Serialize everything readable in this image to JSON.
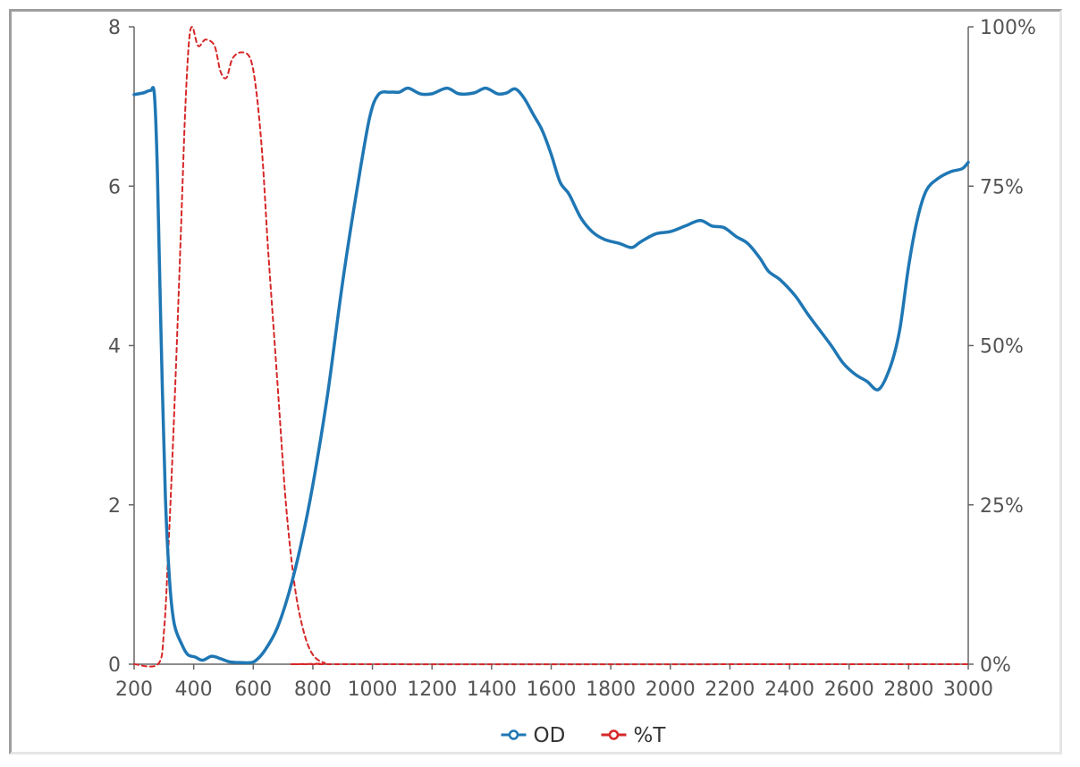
{
  "chart_data": {
    "type": "line",
    "title": "",
    "xlabel": "",
    "ylabel": "",
    "xlim": [
      200,
      3000
    ],
    "ylim": [
      0,
      8
    ],
    "y2lim": [
      0,
      100
    ],
    "x_ticks": [
      "200",
      "400",
      "600",
      "800",
      "1000",
      "1200",
      "1400",
      "1600",
      "1800",
      "2000",
      "2200",
      "2400",
      "2600",
      "2800",
      "3000"
    ],
    "y_ticks": [
      "0",
      "2",
      "4",
      "6",
      "8"
    ],
    "y2_ticks": [
      "0%",
      "25%",
      "50%",
      "75%",
      "100%"
    ],
    "grid": false,
    "legend_position": "bottom",
    "series": [
      {
        "name": "OD",
        "axis": "left",
        "color": "#1f77b4",
        "style": "solid",
        "points": [
          [
            200,
            7.15
          ],
          [
            230,
            7.17
          ],
          [
            255,
            7.2
          ],
          [
            268,
            7.15
          ],
          [
            278,
            6.2
          ],
          [
            290,
            4.2
          ],
          [
            305,
            2.1
          ],
          [
            320,
            1.0
          ],
          [
            335,
            0.5
          ],
          [
            360,
            0.25
          ],
          [
            380,
            0.12
          ],
          [
            405,
            0.09
          ],
          [
            430,
            0.05
          ],
          [
            460,
            0.1
          ],
          [
            490,
            0.07
          ],
          [
            520,
            0.03
          ],
          [
            560,
            0.02
          ],
          [
            590,
            0.02
          ],
          [
            610,
            0.05
          ],
          [
            640,
            0.18
          ],
          [
            680,
            0.45
          ],
          [
            720,
            0.9
          ],
          [
            760,
            1.5
          ],
          [
            800,
            2.25
          ],
          [
            850,
            3.4
          ],
          [
            900,
            4.8
          ],
          [
            950,
            6.0
          ],
          [
            990,
            6.85
          ],
          [
            1020,
            7.15
          ],
          [
            1060,
            7.18
          ],
          [
            1090,
            7.18
          ],
          [
            1120,
            7.23
          ],
          [
            1160,
            7.16
          ],
          [
            1200,
            7.16
          ],
          [
            1250,
            7.23
          ],
          [
            1290,
            7.16
          ],
          [
            1340,
            7.17
          ],
          [
            1380,
            7.23
          ],
          [
            1420,
            7.16
          ],
          [
            1450,
            7.17
          ],
          [
            1480,
            7.22
          ],
          [
            1510,
            7.1
          ],
          [
            1540,
            6.9
          ],
          [
            1570,
            6.7
          ],
          [
            1600,
            6.4
          ],
          [
            1630,
            6.05
          ],
          [
            1660,
            5.9
          ],
          [
            1700,
            5.6
          ],
          [
            1740,
            5.42
          ],
          [
            1780,
            5.33
          ],
          [
            1830,
            5.28
          ],
          [
            1870,
            5.23
          ],
          [
            1900,
            5.3
          ],
          [
            1950,
            5.4
          ],
          [
            2000,
            5.43
          ],
          [
            2050,
            5.5
          ],
          [
            2100,
            5.57
          ],
          [
            2140,
            5.5
          ],
          [
            2180,
            5.48
          ],
          [
            2220,
            5.37
          ],
          [
            2260,
            5.28
          ],
          [
            2300,
            5.1
          ],
          [
            2330,
            4.93
          ],
          [
            2370,
            4.82
          ],
          [
            2420,
            4.62
          ],
          [
            2460,
            4.4
          ],
          [
            2500,
            4.2
          ],
          [
            2540,
            4.0
          ],
          [
            2580,
            3.78
          ],
          [
            2620,
            3.64
          ],
          [
            2660,
            3.55
          ],
          [
            2700,
            3.45
          ],
          [
            2740,
            3.75
          ],
          [
            2770,
            4.2
          ],
          [
            2800,
            5.0
          ],
          [
            2830,
            5.6
          ],
          [
            2860,
            5.95
          ],
          [
            2900,
            6.1
          ],
          [
            2940,
            6.18
          ],
          [
            2980,
            6.22
          ],
          [
            3000,
            6.3
          ]
        ]
      },
      {
        "name": "%T",
        "axis": "right",
        "color": "#d62728",
        "style": "dashed",
        "points": [
          [
            200,
            0
          ],
          [
            280,
            0
          ],
          [
            300,
            5
          ],
          [
            315,
            18
          ],
          [
            335,
            40
          ],
          [
            355,
            65
          ],
          [
            370,
            85
          ],
          [
            383,
            97
          ],
          [
            395,
            100
          ],
          [
            415,
            97
          ],
          [
            440,
            98
          ],
          [
            470,
            97
          ],
          [
            490,
            93
          ],
          [
            510,
            92
          ],
          [
            530,
            95
          ],
          [
            560,
            96
          ],
          [
            590,
            95
          ],
          [
            610,
            90
          ],
          [
            630,
            80
          ],
          [
            650,
            65
          ],
          [
            680,
            45
          ],
          [
            710,
            25
          ],
          [
            740,
            12
          ],
          [
            770,
            5
          ],
          [
            800,
            1.5
          ],
          [
            840,
            0.2
          ],
          [
            900,
            0
          ],
          [
            3000,
            0
          ]
        ]
      }
    ]
  }
}
